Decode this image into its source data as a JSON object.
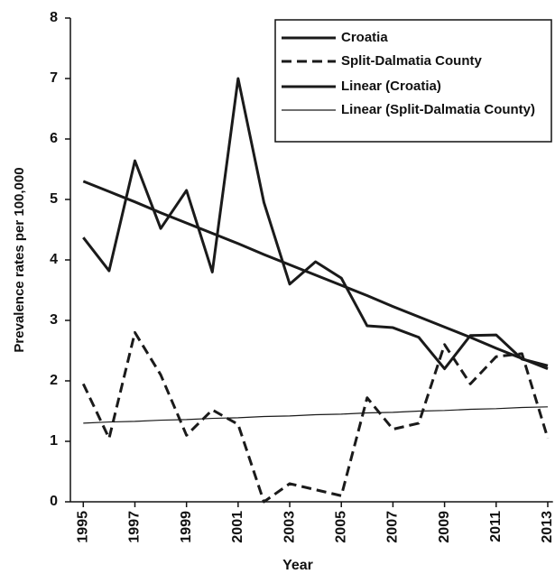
{
  "chart_data": {
    "type": "line",
    "x_label": "Year",
    "y_label": "Prevalence rates per 100,000",
    "x": [
      1995,
      1996,
      1997,
      1998,
      1999,
      2000,
      2001,
      2002,
      2003,
      2004,
      2005,
      2006,
      2007,
      2008,
      2009,
      2010,
      2011,
      2012,
      2013
    ],
    "xlim": [
      1994.5,
      2013.2
    ],
    "xticks": [
      1995,
      1997,
      1999,
      2001,
      2003,
      2005,
      2007,
      2009,
      2011,
      2013
    ],
    "ylim": [
      0,
      8
    ],
    "yticks": [
      0,
      1,
      2,
      3,
      4,
      5,
      6,
      7,
      8
    ],
    "legend": "top-right",
    "series": [
      {
        "name": "Croatia",
        "color": "#1a1a1a",
        "style": "solid",
        "width": 3,
        "values": [
          4.37,
          3.82,
          5.64,
          4.52,
          5.15,
          3.8,
          7.0,
          4.95,
          3.6,
          3.97,
          3.7,
          2.91,
          2.88,
          2.72,
          2.2,
          2.75,
          2.76,
          2.36,
          2.25
        ]
      },
      {
        "name": "Split-Dalmatia County",
        "color": "#1a1a1a",
        "style": "dashed",
        "width": 3,
        "values": [
          1.95,
          1.05,
          2.8,
          2.1,
          1.1,
          1.52,
          1.28,
          0,
          0.3,
          0.2,
          0.1,
          1.72,
          1.2,
          1.3,
          2.6,
          1.95,
          2.4,
          2.45,
          1.05
        ]
      },
      {
        "name": "Linear (Croatia)",
        "color": "#1a1a1a",
        "style": "solid",
        "width": 3,
        "values": [
          5.3,
          5.13,
          4.96,
          4.78,
          4.61,
          4.44,
          4.27,
          4.09,
          3.92,
          3.75,
          3.58,
          3.41,
          3.23,
          3.06,
          2.89,
          2.72,
          2.54,
          2.37,
          2.2
        ]
      },
      {
        "name": "Linear (Split-Dalmatia County)",
        "color": "#1a1a1a",
        "style": "solid",
        "width": 1.2,
        "values": [
          1.3,
          1.32,
          1.33,
          1.35,
          1.36,
          1.38,
          1.39,
          1.41,
          1.42,
          1.44,
          1.45,
          1.47,
          1.48,
          1.5,
          1.51,
          1.53,
          1.54,
          1.56,
          1.57
        ]
      }
    ]
  }
}
